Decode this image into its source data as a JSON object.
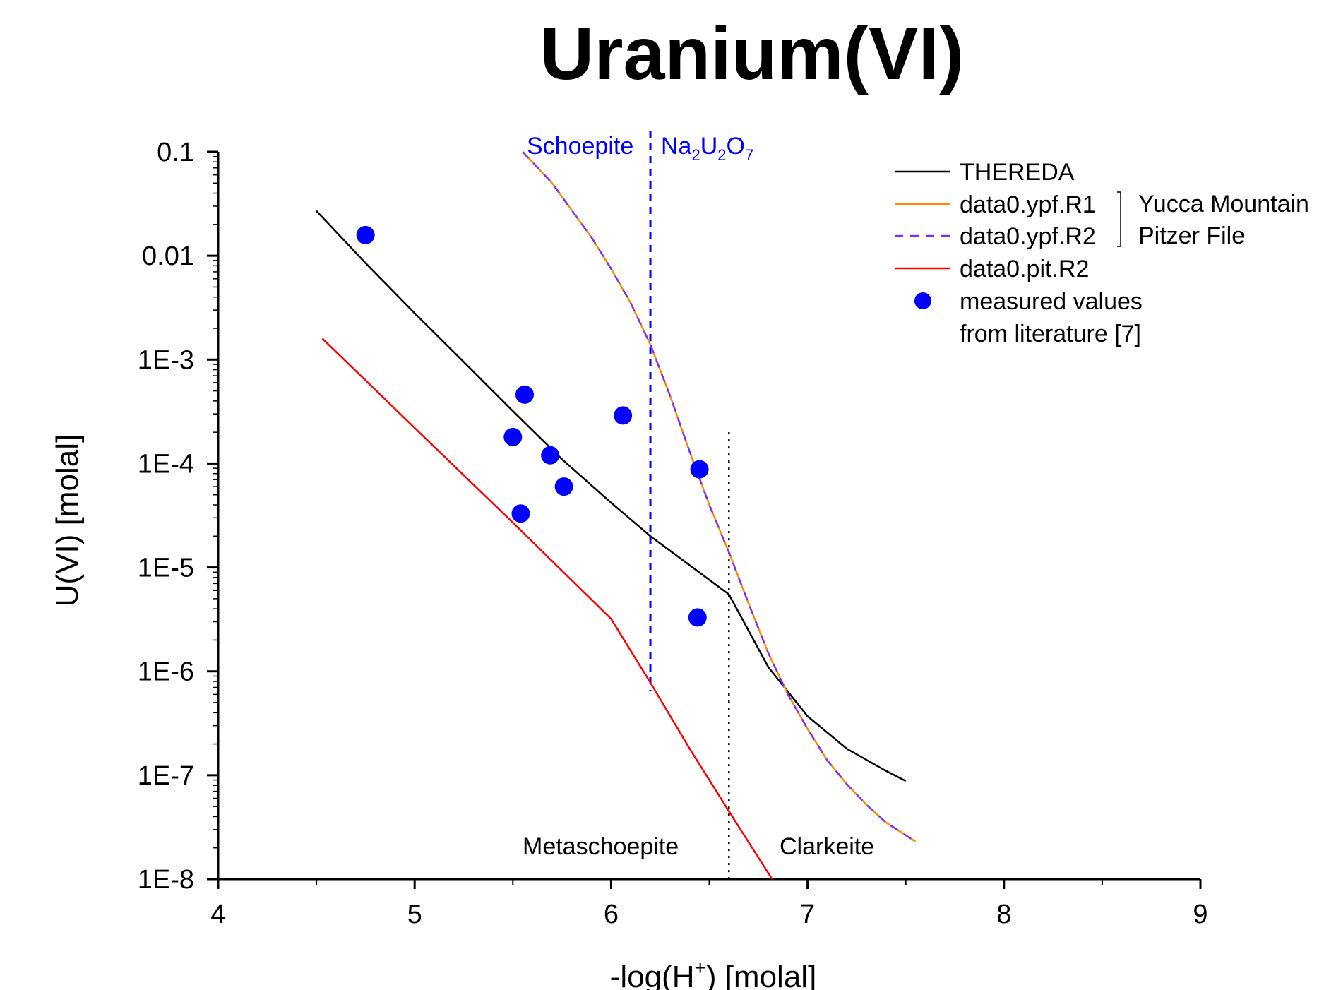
{
  "chart_data": {
    "type": "line",
    "title": "Uranium(VI)",
    "xlabel_main": "-log(H",
    "xlabel_sup": "+",
    "xlabel_tail": ") [molal]",
    "ylabel": "U(VI) [molal]",
    "xlim": [
      4,
      9
    ],
    "ylim": [
      1e-08,
      0.1
    ],
    "yscale": "log",
    "x_ticks": [
      "4",
      "5",
      "6",
      "7",
      "8",
      "9"
    ],
    "y_ticks": [
      "1E-8",
      "1E-7",
      "1E-6",
      "1E-5",
      "1E-4",
      "1E-3",
      "0.01",
      "0.1"
    ],
    "grid": false,
    "legend_position": "top-right",
    "colors": {
      "thereda": "#000000",
      "ypf_r1": "#ff8c00",
      "ypf_r2": "#7b2ff7",
      "pit_r2": "#ff0000",
      "measured": "#0000ff",
      "boundary": "#0000ff"
    },
    "series": [
      {
        "name": "THEREDA",
        "style": "solid",
        "x": [
          4.5,
          4.75,
          5.0,
          5.25,
          5.5,
          5.75,
          6.0,
          6.2,
          6.4,
          6.6,
          6.8,
          7.0,
          7.2,
          7.4,
          7.5
        ],
        "y": [
          0.027,
          0.0085,
          0.0028,
          0.00095,
          0.00032,
          0.00011,
          4.2e-05,
          2e-05,
          1.05e-05,
          5.5e-06,
          1.1e-06,
          3.7e-07,
          1.8e-07,
          1.1e-07,
          8.8e-08
        ]
      },
      {
        "name": "data0.ypf.R1",
        "style": "solid",
        "x": [
          5.55,
          5.7,
          5.9,
          6.0,
          6.1,
          6.2,
          6.3,
          6.4,
          6.5,
          6.6,
          6.7,
          6.8,
          6.9,
          7.0,
          7.1,
          7.2,
          7.3,
          7.4,
          7.55
        ],
        "y": [
          0.1,
          0.05,
          0.015,
          0.0075,
          0.0035,
          0.0014,
          0.00045,
          0.00013,
          4e-05,
          1.4e-05,
          4.5e-06,
          1.5e-06,
          6e-07,
          2.8e-07,
          1.4e-07,
          8.2e-08,
          5.2e-08,
          3.5e-08,
          2.3e-08
        ]
      },
      {
        "name": "data0.ypf.R2",
        "style": "dashed",
        "x": [
          5.55,
          5.7,
          5.9,
          6.0,
          6.1,
          6.2,
          6.3,
          6.4,
          6.5,
          6.6,
          6.7,
          6.8,
          6.9,
          7.0,
          7.1,
          7.2,
          7.3,
          7.4,
          7.55
        ],
        "y": [
          0.1,
          0.05,
          0.015,
          0.0075,
          0.0035,
          0.0014,
          0.00045,
          0.00013,
          4e-05,
          1.4e-05,
          4.5e-06,
          1.5e-06,
          6e-07,
          2.8e-07,
          1.4e-07,
          8.2e-08,
          5.2e-08,
          3.5e-08,
          2.3e-08
        ]
      },
      {
        "name": "data0.pit.R2",
        "style": "solid",
        "x": [
          4.53,
          5.0,
          5.5,
          6.0,
          6.2,
          6.4,
          6.6,
          6.82
        ],
        "y": [
          0.0016,
          0.00022,
          2.7e-05,
          3.2e-06,
          7.8e-07,
          1.8e-07,
          4.5e-08,
          1e-08
        ]
      }
    ],
    "points": {
      "name": "measured values",
      "name2": "from literature [7]",
      "x": [
        4.75,
        5.5,
        5.54,
        5.56,
        5.69,
        5.76,
        6.06,
        6.45,
        6.44
      ],
      "y": [
        0.0158,
        0.00018,
        3.3e-05,
        0.00046,
        0.00012,
        6e-05,
        0.00029,
        8.8e-05,
        3.3e-06
      ]
    },
    "boundary_line": {
      "x": 6.2,
      "y_from": 6.5e-07,
      "y_to": 0.1
    },
    "dotted_line": {
      "x": 6.6,
      "y_from": 1e-08,
      "y_to": 0.0002
    },
    "phase_labels": {
      "schoepite": "Schoepite",
      "na_main": [
        "Na",
        "U",
        "O"
      ],
      "na_subs": [
        "2",
        "2",
        "7"
      ],
      "metaschoepite": "Metaschoepite",
      "clarkeite": "Clarkeite"
    },
    "legend": {
      "entries": [
        "THEREDA",
        "data0.ypf.R1",
        "data0.ypf.R2",
        "data0.pit.R2",
        "measured values",
        "from literature [7]"
      ],
      "group_label_1": "Yucca Mountain",
      "group_label_2": "Pitzer File"
    }
  }
}
